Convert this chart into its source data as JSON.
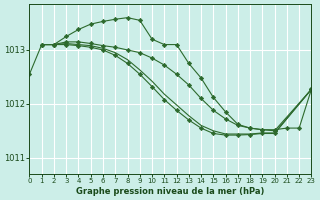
{
  "bg_color": "#cceee8",
  "grid_color": "#ffffff",
  "line_color": "#2d6a2d",
  "marker_color": "#2d6a2d",
  "xlabel": "Graphe pression niveau de la mer (hPa)",
  "xlabel_color": "#1a4a1a",
  "tick_color": "#1a4a1a",
  "xlim": [
    0,
    23
  ],
  "ylim": [
    1010.7,
    1013.85
  ],
  "yticks": [
    1011,
    1012,
    1013
  ],
  "xticks": [
    0,
    1,
    2,
    3,
    4,
    5,
    6,
    7,
    8,
    9,
    10,
    11,
    12,
    13,
    14,
    15,
    16,
    17,
    18,
    19,
    20,
    21,
    22,
    23
  ],
  "series": [
    {
      "x": [
        0,
        1,
        2,
        3,
        4,
        5,
        6,
        7,
        8,
        9,
        10,
        11,
        12,
        13,
        14,
        15,
        16,
        17,
        18,
        19,
        20,
        21,
        22,
        23
      ],
      "y": [
        1012.55,
        1013.1,
        1013.1,
        1013.15,
        1013.15,
        1013.12,
        1013.08,
        1013.05,
        1013.0,
        1012.95,
        1012.85,
        1012.72,
        1012.55,
        1012.35,
        1012.1,
        1011.88,
        1011.72,
        1011.6,
        1011.55,
        1011.52,
        1011.52,
        1011.55,
        1011.55,
        1012.27
      ],
      "has_markers": true
    },
    {
      "x": [
        1,
        2,
        3,
        4,
        5,
        6,
        7,
        8,
        9,
        10,
        11,
        12,
        13,
        14,
        15,
        16,
        17,
        18,
        19,
        20,
        23
      ],
      "y": [
        1013.1,
        1013.1,
        1013.25,
        1013.38,
        1013.48,
        1013.53,
        1013.57,
        1013.6,
        1013.55,
        1013.2,
        1013.1,
        1013.1,
        1012.75,
        1012.48,
        1012.12,
        1011.85,
        1011.62,
        1011.55,
        1011.52,
        1011.5,
        1012.27
      ],
      "has_markers": true
    },
    {
      "x": [
        1,
        2,
        3,
        4,
        5,
        6,
        7,
        8,
        9,
        10,
        11,
        12,
        13,
        14,
        15,
        16,
        17,
        18,
        19,
        20,
        23
      ],
      "y": [
        1013.1,
        1013.1,
        1013.1,
        1013.08,
        1013.05,
        1013.0,
        1012.9,
        1012.75,
        1012.55,
        1012.32,
        1012.08,
        1011.88,
        1011.7,
        1011.55,
        1011.45,
        1011.42,
        1011.42,
        1011.43,
        1011.45,
        1011.45,
        1012.27
      ],
      "has_markers": true
    },
    {
      "x": [
        1,
        2,
        3,
        4,
        5,
        6,
        7,
        8,
        9,
        10,
        11,
        12,
        13,
        14,
        15,
        16,
        17,
        18,
        19,
        20,
        23
      ],
      "y": [
        1013.1,
        1013.1,
        1013.12,
        1013.1,
        1013.08,
        1013.03,
        1012.95,
        1012.82,
        1012.63,
        1012.42,
        1012.18,
        1011.98,
        1011.78,
        1011.6,
        1011.5,
        1011.44,
        1011.44,
        1011.44,
        1011.46,
        1011.46,
        1012.27
      ],
      "has_markers": false
    }
  ]
}
